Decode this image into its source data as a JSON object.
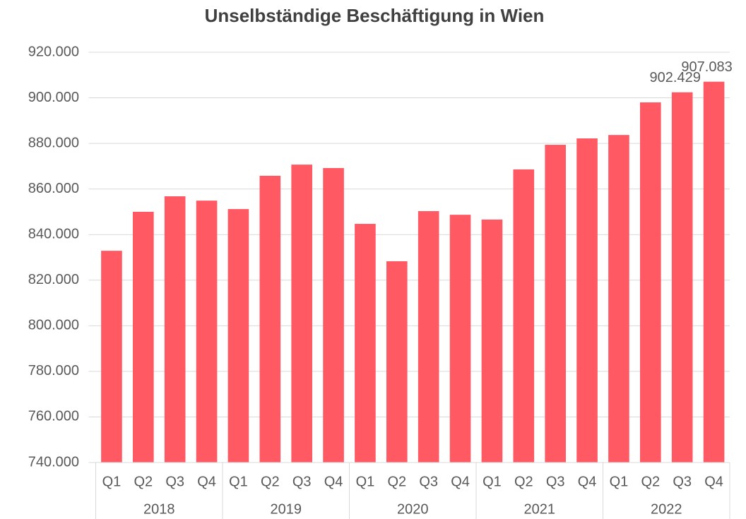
{
  "chart_data": {
    "type": "bar",
    "title": "Unselbständige Beschäftigung in Wien",
    "categories": [
      "Q1",
      "Q2",
      "Q3",
      "Q4",
      "Q1",
      "Q2",
      "Q3",
      "Q4",
      "Q1",
      "Q2",
      "Q3",
      "Q4",
      "Q1",
      "Q2",
      "Q3",
      "Q4",
      "Q1",
      "Q2",
      "Q3",
      "Q4"
    ],
    "groups": [
      "2018",
      "2019",
      "2020",
      "2021",
      "2022"
    ],
    "values": [
      832900,
      850000,
      856800,
      854900,
      851200,
      865800,
      870700,
      869200,
      844700,
      828300,
      850300,
      848700,
      846600,
      868600,
      879400,
      882200,
      883700,
      898000,
      902429,
      907083
    ],
    "value_labels": [
      null,
      null,
      null,
      null,
      null,
      null,
      null,
      null,
      null,
      null,
      null,
      null,
      null,
      null,
      null,
      null,
      null,
      null,
      "902.429",
      "907.083"
    ],
    "color": "#ff5a64",
    "ylim": [
      740000,
      920000
    ],
    "yticks": [
      {
        "value": 740000,
        "label": "740.000"
      },
      {
        "value": 760000,
        "label": "760.000"
      },
      {
        "value": 780000,
        "label": "780.000"
      },
      {
        "value": 800000,
        "label": "800.000"
      },
      {
        "value": 820000,
        "label": "820.000"
      },
      {
        "value": 840000,
        "label": "840.000"
      },
      {
        "value": 860000,
        "label": "860.000"
      },
      {
        "value": 880000,
        "label": "880.000"
      },
      {
        "value": 900000,
        "label": "900.000"
      },
      {
        "value": 920000,
        "label": "920.000"
      }
    ],
    "grid": true
  }
}
